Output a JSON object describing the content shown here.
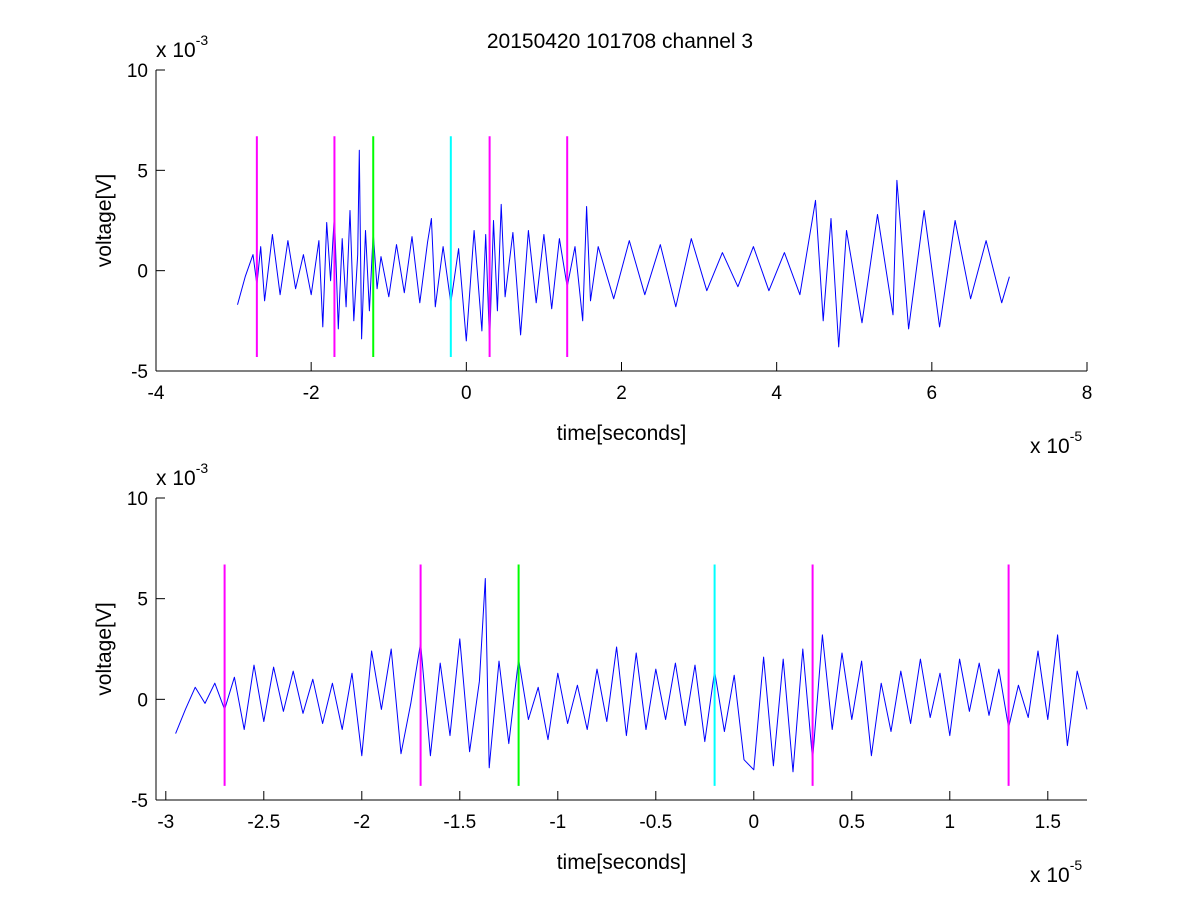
{
  "figure": {
    "title": "20150420 101708 channel 3"
  },
  "chart_data": [
    {
      "type": "line",
      "title": "20150420 101708 channel 3",
      "xlabel": "time[seconds]",
      "ylabel": "voltage[V]",
      "x_multiplier": "x 10",
      "x_exponent": "-5",
      "y_multiplier": "x 10",
      "y_exponent": "-3",
      "xlim": [
        -4,
        8
      ],
      "ylim": [
        -5,
        10
      ],
      "xticks": [
        -4,
        -2,
        0,
        2,
        4,
        6,
        8
      ],
      "xtick_labels": [
        "-4",
        "-2",
        "0",
        "2",
        "4",
        "6",
        "8"
      ],
      "yticks": [
        -5,
        0,
        5,
        10
      ],
      "ytick_labels": [
        "-5",
        "0",
        "5",
        "10"
      ],
      "grid": false,
      "colors": {
        "signal": "#0000ff",
        "magenta": "#ff00ff",
        "green": "#00ff00",
        "cyan": "#00ffff"
      },
      "series": [
        {
          "color": "#0000ff",
          "x": [
            -2.95,
            -2.85,
            -2.75,
            -2.7,
            -2.65,
            -2.6,
            -2.5,
            -2.4,
            -2.3,
            -2.2,
            -2.1,
            -2.0,
            -1.9,
            -1.85,
            -1.8,
            -1.75,
            -1.7,
            -1.65,
            -1.6,
            -1.55,
            -1.5,
            -1.45,
            -1.4,
            -1.38,
            -1.35,
            -1.3,
            -1.25,
            -1.2,
            -1.15,
            -1.1,
            -1.0,
            -0.9,
            -0.8,
            -0.7,
            -0.6,
            -0.5,
            -0.45,
            -0.4,
            -0.3,
            -0.2,
            -0.1,
            0.0,
            0.1,
            0.2,
            0.25,
            0.3,
            0.35,
            0.4,
            0.45,
            0.5,
            0.6,
            0.7,
            0.8,
            0.9,
            1.0,
            1.1,
            1.2,
            1.3,
            1.4,
            1.5,
            1.55,
            1.6,
            1.7,
            1.9,
            2.1,
            2.3,
            2.5,
            2.7,
            2.9,
            3.1,
            3.3,
            3.5,
            3.7,
            3.9,
            4.1,
            4.3,
            4.5,
            4.6,
            4.7,
            4.8,
            4.9,
            5.1,
            5.3,
            5.5,
            5.55,
            5.7,
            5.9,
            6.1,
            6.3,
            6.5,
            6.7,
            6.9,
            7.0
          ],
          "y": [
            -1.7,
            -0.3,
            0.8,
            -0.7,
            1.2,
            -1.5,
            1.8,
            -1.2,
            1.5,
            -0.9,
            0.8,
            -1.2,
            1.5,
            -2.8,
            2.4,
            -0.5,
            2.8,
            -2.9,
            1.6,
            -1.8,
            3.0,
            -2.5,
            0.8,
            6.0,
            -3.4,
            2.0,
            -2.0,
            1.9,
            -0.9,
            0.7,
            -1.3,
            1.3,
            -1.1,
            1.7,
            -1.6,
            1.4,
            2.6,
            -1.8,
            1.2,
            -1.6,
            1.1,
            -3.5,
            2.0,
            -3.0,
            1.8,
            -3.6,
            2.5,
            -2.0,
            3.3,
            -1.3,
            1.9,
            -3.2,
            2.0,
            -1.6,
            1.8,
            -1.9,
            1.6,
            -0.8,
            1.2,
            -2.5,
            3.2,
            -1.5,
            1.2,
            -1.4,
            1.5,
            -1.2,
            1.3,
            -1.8,
            1.6,
            -1.0,
            0.9,
            -0.8,
            1.2,
            -1.0,
            0.9,
            -1.2,
            3.5,
            -2.5,
            2.6,
            -3.8,
            2.0,
            -2.6,
            2.8,
            -2.2,
            4.5,
            -2.9,
            3.0,
            -2.8,
            2.5,
            -1.4,
            1.5,
            -1.6,
            -0.3
          ]
        }
      ],
      "vertical_lines": [
        {
          "x": -2.7,
          "color": "magenta"
        },
        {
          "x": -1.7,
          "color": "magenta"
        },
        {
          "x": -1.2,
          "color": "green"
        },
        {
          "x": -0.2,
          "color": "cyan"
        },
        {
          "x": 0.3,
          "color": "magenta"
        },
        {
          "x": 1.3,
          "color": "magenta"
        }
      ],
      "vline_range": [
        -4.3,
        6.7
      ]
    },
    {
      "type": "line",
      "xlabel": "time[seconds]",
      "ylabel": "voltage[V]",
      "x_multiplier": "x 10",
      "x_exponent": "-5",
      "y_multiplier": "x 10",
      "y_exponent": "-3",
      "xlim": [
        -3.05,
        1.7
      ],
      "ylim": [
        -5,
        10
      ],
      "xticks": [
        -3,
        -2.5,
        -2,
        -1.5,
        -1,
        -0.5,
        0,
        0.5,
        1,
        1.5
      ],
      "xtick_labels": [
        "-3",
        "-2.5",
        "-2",
        "-1.5",
        "-1",
        "-0.5",
        "0",
        "0.5",
        "1",
        "1.5"
      ],
      "yticks": [
        -5,
        0,
        5,
        10
      ],
      "ytick_labels": [
        "-5",
        "0",
        "5",
        "10"
      ],
      "grid": false,
      "series": [
        {
          "color": "#0000ff",
          "x": [
            -2.95,
            -2.9,
            -2.85,
            -2.8,
            -2.75,
            -2.7,
            -2.65,
            -2.6,
            -2.55,
            -2.5,
            -2.45,
            -2.4,
            -2.35,
            -2.3,
            -2.25,
            -2.2,
            -2.15,
            -2.1,
            -2.05,
            -2.0,
            -1.95,
            -1.9,
            -1.85,
            -1.8,
            -1.75,
            -1.7,
            -1.65,
            -1.6,
            -1.55,
            -1.5,
            -1.45,
            -1.4,
            -1.37,
            -1.35,
            -1.3,
            -1.25,
            -1.2,
            -1.15,
            -1.1,
            -1.05,
            -1.0,
            -0.95,
            -0.9,
            -0.85,
            -0.8,
            -0.75,
            -0.7,
            -0.65,
            -0.6,
            -0.55,
            -0.5,
            -0.45,
            -0.4,
            -0.35,
            -0.3,
            -0.25,
            -0.2,
            -0.15,
            -0.1,
            -0.05,
            0.0,
            0.05,
            0.1,
            0.15,
            0.2,
            0.25,
            0.3,
            0.35,
            0.4,
            0.45,
            0.5,
            0.55,
            0.6,
            0.65,
            0.7,
            0.75,
            0.8,
            0.85,
            0.9,
            0.95,
            1.0,
            1.05,
            1.1,
            1.15,
            1.2,
            1.25,
            1.3,
            1.35,
            1.4,
            1.45,
            1.5,
            1.55,
            1.6,
            1.65,
            1.7
          ],
          "y": [
            -1.7,
            -0.5,
            0.6,
            -0.2,
            0.8,
            -0.5,
            1.1,
            -1.5,
            1.7,
            -1.1,
            1.6,
            -0.6,
            1.4,
            -0.7,
            1.0,
            -1.2,
            0.8,
            -1.5,
            1.3,
            -2.8,
            2.4,
            -0.5,
            2.5,
            -2.7,
            -0.2,
            2.8,
            -2.8,
            1.8,
            -1.8,
            3.0,
            -2.6,
            0.9,
            6.0,
            -3.4,
            1.9,
            -2.2,
            2.0,
            -1.0,
            0.6,
            -2.0,
            1.3,
            -1.2,
            0.7,
            -1.5,
            1.5,
            -1.1,
            2.6,
            -1.8,
            2.3,
            -1.5,
            1.5,
            -1.0,
            1.8,
            -1.3,
            1.7,
            -2.1,
            1.4,
            -1.6,
            1.2,
            -3.0,
            -3.5,
            2.1,
            -3.3,
            2.0,
            -3.6,
            2.5,
            -3.0,
            3.2,
            -1.5,
            2.3,
            -1.0,
            1.9,
            -2.8,
            0.8,
            -1.6,
            1.4,
            -1.2,
            2.0,
            -0.9,
            1.3,
            -1.8,
            2.0,
            -0.6,
            1.8,
            -0.8,
            1.5,
            -1.4,
            0.7,
            -0.9,
            2.4,
            -1.0,
            3.2,
            -2.3,
            1.4,
            -0.5
          ]
        }
      ],
      "vertical_lines": [
        {
          "x": -2.7,
          "color": "magenta"
        },
        {
          "x": -1.7,
          "color": "magenta"
        },
        {
          "x": -1.2,
          "color": "green"
        },
        {
          "x": -0.2,
          "color": "cyan"
        },
        {
          "x": 0.3,
          "color": "magenta"
        },
        {
          "x": 1.3,
          "color": "magenta"
        }
      ],
      "vline_range": [
        -4.3,
        6.7
      ]
    }
  ]
}
